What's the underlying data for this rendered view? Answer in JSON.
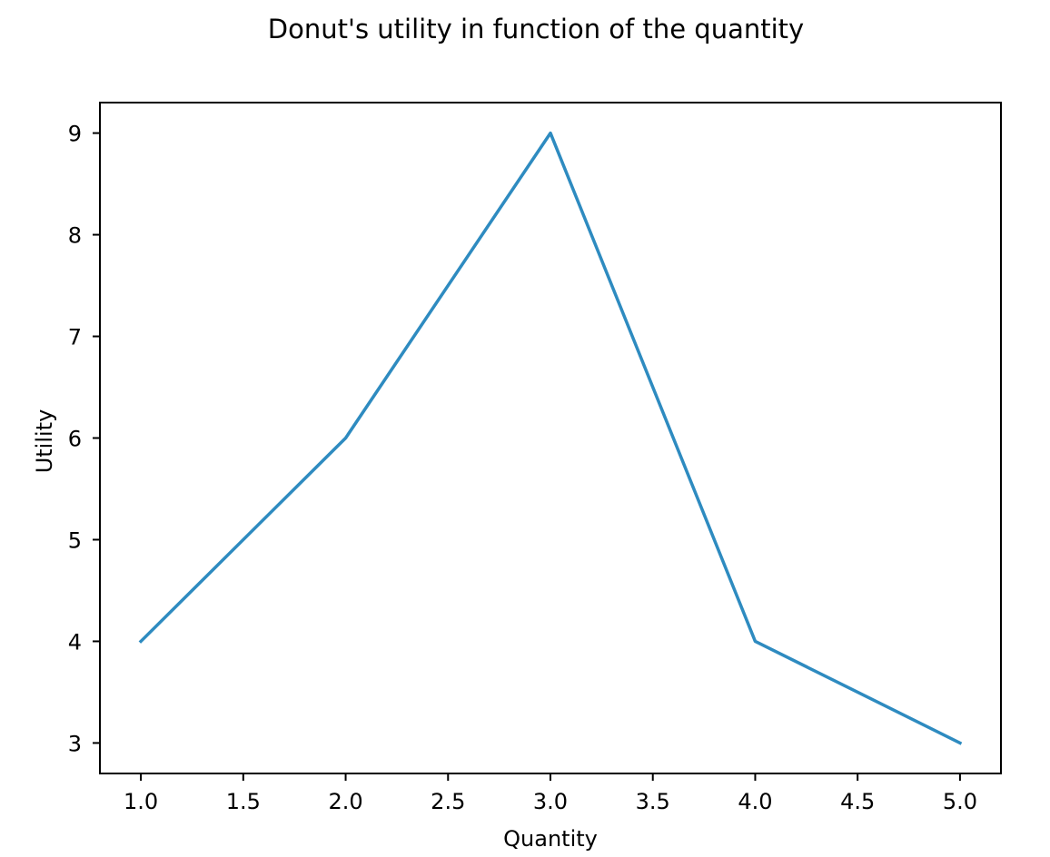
{
  "chart_data": {
    "type": "line",
    "title": "Donut's utility in function of the quantity",
    "xlabel": "Quantity",
    "ylabel": "Utility",
    "x": [
      1,
      2,
      3,
      4,
      5
    ],
    "series": [
      {
        "values": [
          4,
          6,
          9,
          4,
          3
        ],
        "color": "#2e8bc0"
      }
    ],
    "xlim": [
      0.8,
      5.2
    ],
    "ylim": [
      2.7,
      9.3
    ],
    "xticks": [
      "1.0",
      "1.5",
      "2.0",
      "2.5",
      "3.0",
      "3.5",
      "4.0",
      "4.5",
      "5.0"
    ],
    "yticks": [
      "3",
      "4",
      "5",
      "6",
      "7",
      "8",
      "9"
    ],
    "grid": false,
    "legend": false
  }
}
